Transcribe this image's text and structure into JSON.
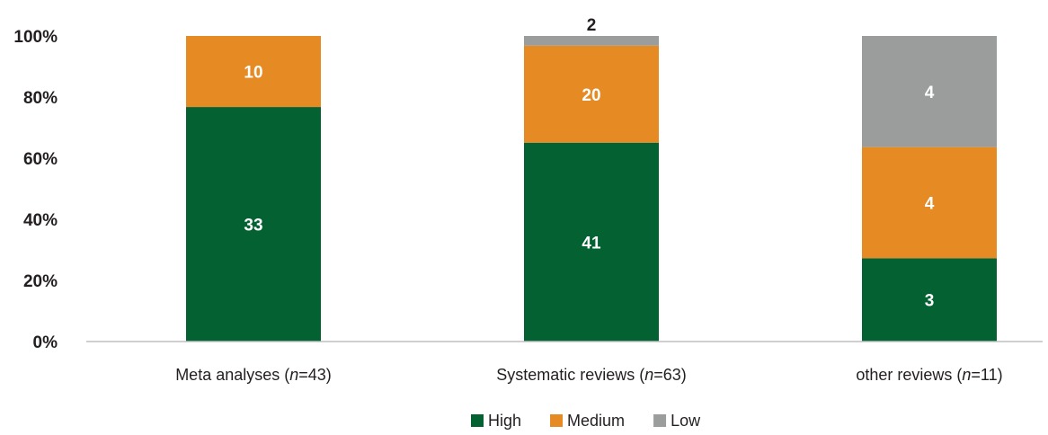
{
  "chart_data": {
    "type": "bar",
    "stacked": true,
    "normalized_percent": true,
    "categories": [
      {
        "prefix": "Meta analyses (",
        "n_symbol": "n",
        "suffix": "=43)"
      },
      {
        "prefix": "Systematic reviews (",
        "n_symbol": "n",
        "suffix": "=63)"
      },
      {
        "prefix": "other reviews (",
        "n_symbol": "n",
        "suffix": "=11)"
      }
    ],
    "series": [
      {
        "name": "High",
        "color": "#046131",
        "label_color": "#ffffff",
        "values": [
          33,
          41,
          3
        ]
      },
      {
        "name": "Medium",
        "color": "#e68a24",
        "label_color": "#ffffff",
        "values": [
          10,
          20,
          4
        ]
      },
      {
        "name": "Low",
        "color": "#9b9d9c",
        "label_color": "#ffffff",
        "values": [
          0,
          2,
          4
        ]
      }
    ],
    "y_ticks": [
      "0%",
      "20%",
      "40%",
      "60%",
      "80%",
      "100%"
    ],
    "ylim": [
      0,
      100
    ],
    "grid": false,
    "legend_position": "bottom"
  }
}
